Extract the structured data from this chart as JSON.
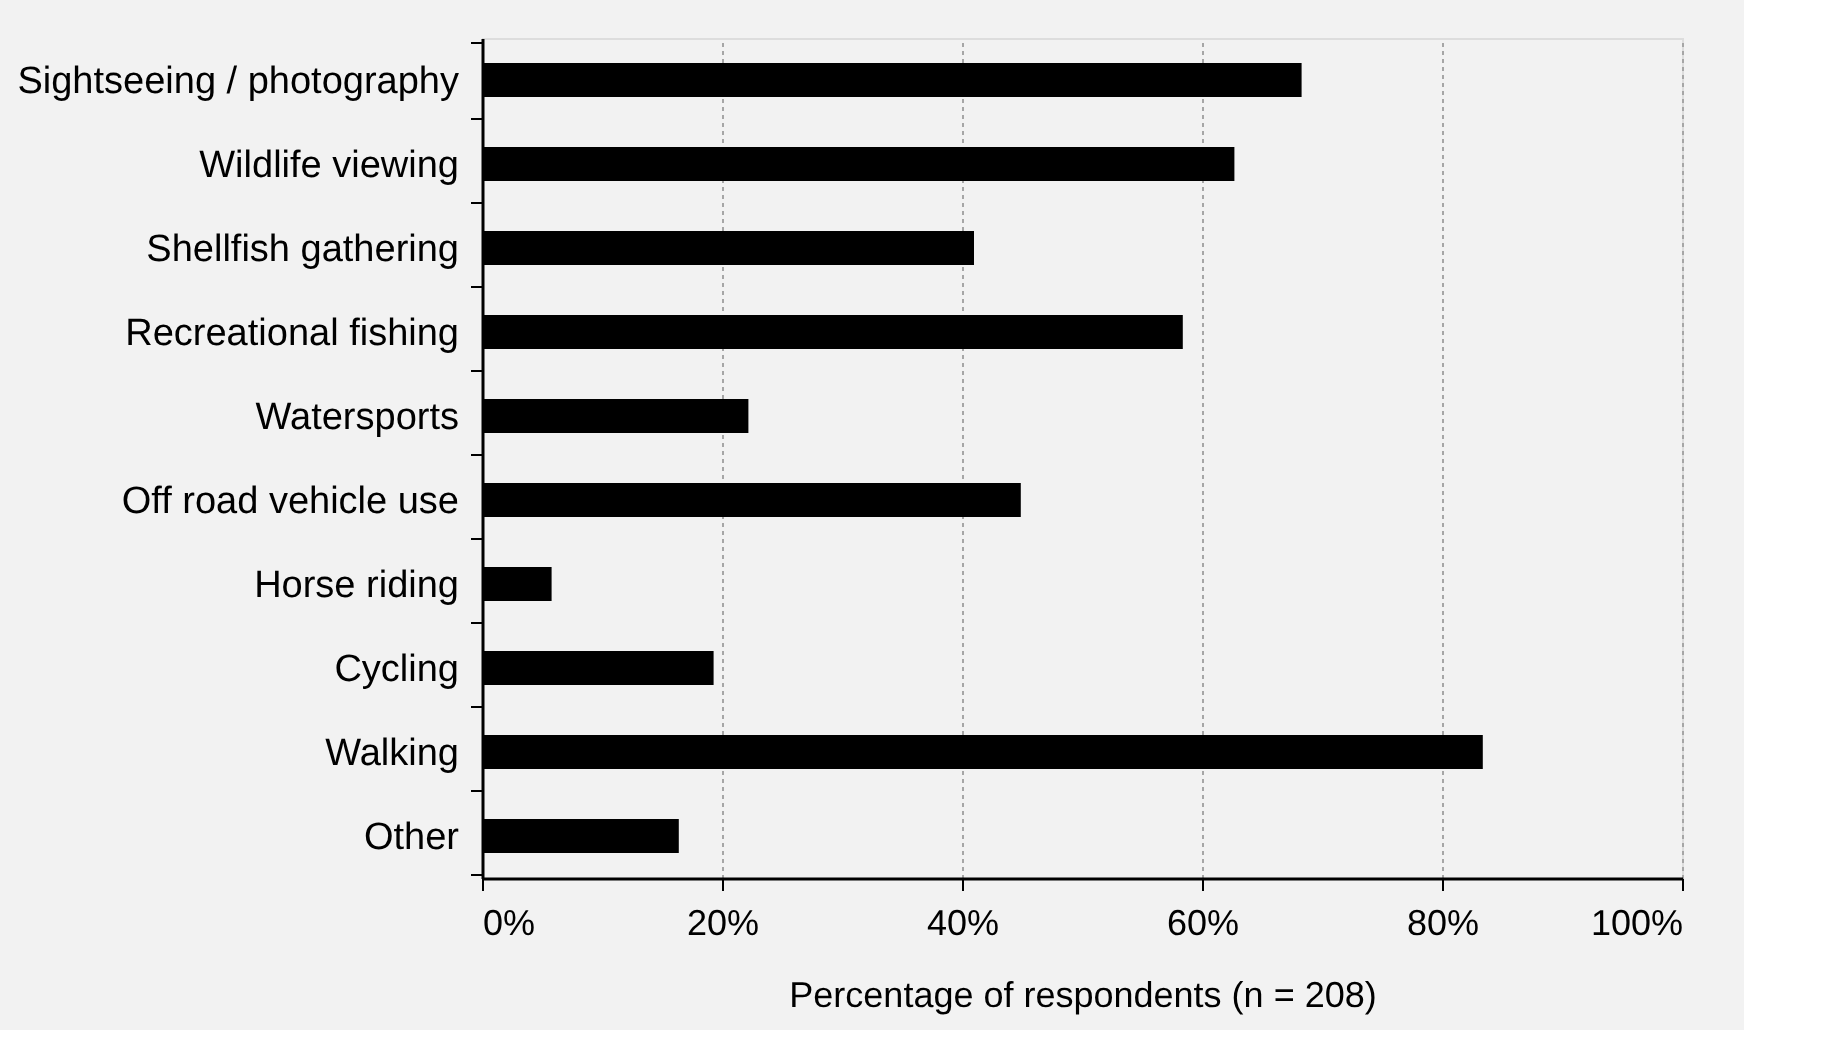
{
  "chart_data": {
    "type": "bar",
    "orientation": "horizontal",
    "categories": [
      "Sightseeing / photography",
      "Wildlife viewing",
      "Shellfish gathering",
      "Recreational fishing",
      "Watersports",
      "Off road vehicle use",
      "Horse riding",
      "Cycling",
      "Walking",
      "Other"
    ],
    "values": [
      68.3,
      62.7,
      41.0,
      58.4,
      22.2,
      44.9,
      5.8,
      19.3,
      83.4,
      16.4
    ],
    "color": "#000000",
    "xlabel": "Percentage of respondents (n = 208)",
    "xlim": [
      0,
      100
    ],
    "xticks": [
      {
        "value": 0,
        "label": "0%"
      },
      {
        "value": 20,
        "label": "20%"
      },
      {
        "value": 40,
        "label": "40%"
      },
      {
        "value": 60,
        "label": "60%"
      },
      {
        "value": 80,
        "label": "80%"
      },
      {
        "value": 100,
        "label": "100%"
      }
    ],
    "grid": "x"
  }
}
